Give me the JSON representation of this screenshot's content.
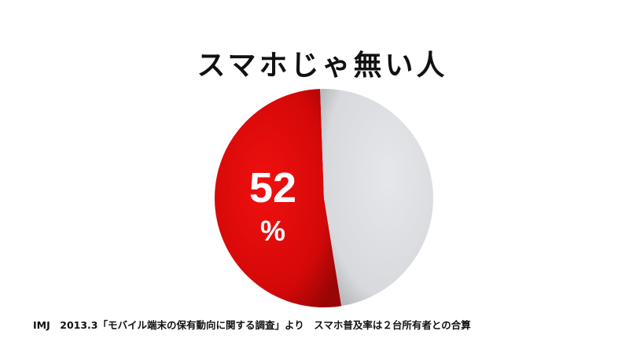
{
  "chart_data": {
    "type": "pie",
    "title": "スマホじゃ無い人",
    "slices": [
      {
        "value": 52,
        "color": "#d90a0a"
      },
      {
        "value": 48,
        "color": "#dcdde0"
      }
    ],
    "data_label": {
      "value": "52",
      "unit": "%"
    }
  },
  "footer": "IMJ　2013.3「モバイル端末の保有動向に関する調査」より　スマホ普及率は２台所有者との合算"
}
